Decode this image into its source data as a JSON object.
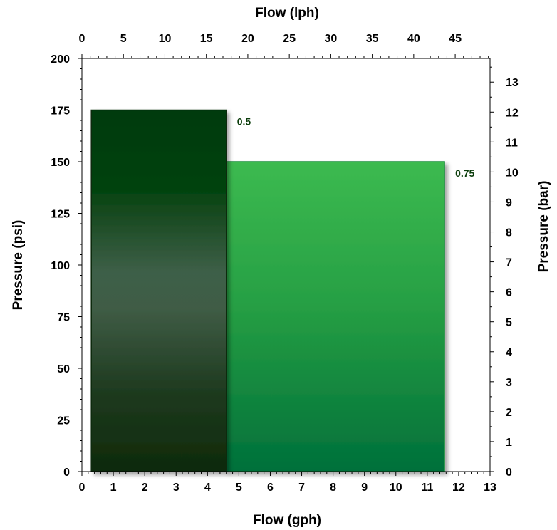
{
  "chart_data": {
    "type": "bar",
    "bottom_axis": {
      "label": "Flow (gph)",
      "range": [
        0,
        13
      ],
      "ticks": [
        "0",
        "1",
        "2",
        "3",
        "4",
        "5",
        "6",
        "7",
        "8",
        "9",
        "10",
        "11",
        "12",
        "13"
      ]
    },
    "top_axis": {
      "label": "Flow (lph)",
      "range": [
        0,
        49.2
      ],
      "ticks": [
        "0",
        "5",
        "10",
        "15",
        "20",
        "25",
        "30",
        "35",
        "40",
        "45"
      ]
    },
    "left_axis": {
      "label": "Pressure (psi)",
      "range": [
        0,
        200
      ],
      "ticks": [
        "0",
        "25",
        "50",
        "75",
        "100",
        "125",
        "150",
        "175",
        "200"
      ]
    },
    "right_axis": {
      "label": "Pressure (bar)",
      "range": [
        0,
        13.79
      ],
      "ticks": [
        "0",
        "1",
        "2",
        "3",
        "4",
        "5",
        "6",
        "7",
        "8",
        "9",
        "10",
        "11",
        "12",
        "13"
      ]
    },
    "series": [
      {
        "label": "0.5",
        "x_start": 0.3,
        "x_end": 4.6,
        "pressure": 175,
        "color": "#0a3d0a"
      },
      {
        "label": "0.75",
        "x_start": 4.6,
        "x_end": 11.55,
        "pressure": 150,
        "color": "#2e9f44"
      }
    ],
    "grid": false,
    "legend": "none"
  }
}
